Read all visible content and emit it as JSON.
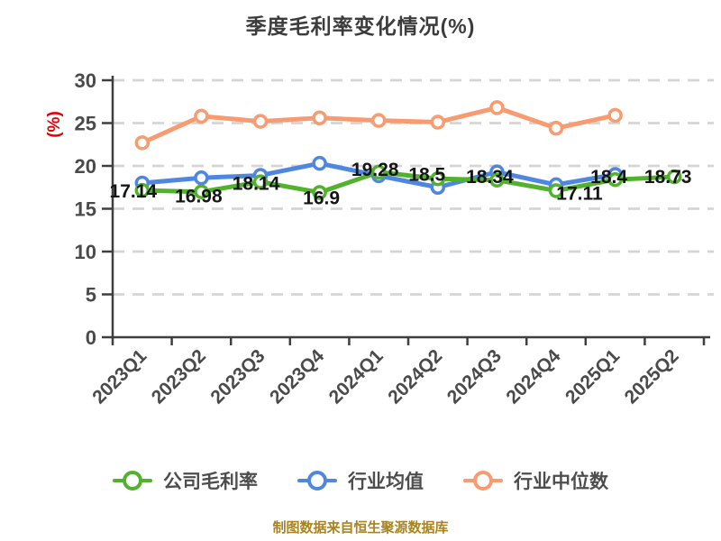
{
  "chart_data": {
    "type": "line",
    "title": "季度毛利率变化情况(%)",
    "categories": [
      "2023Q1",
      "2023Q2",
      "2023Q3",
      "2023Q4",
      "2024Q1",
      "2024Q2",
      "2024Q3",
      "2024Q4",
      "2025Q1",
      "2025Q2"
    ],
    "series": [
      {
        "name": "公司毛利率",
        "color": "#52b22e",
        "values": [
          17.14,
          16.98,
          18.14,
          16.9,
          19.28,
          18.5,
          18.34,
          17.11,
          18.4,
          18.73
        ],
        "data_labels_visible": true
      },
      {
        "name": "行业均值",
        "color": "#4f87e0",
        "values": [
          18.0,
          18.6,
          18.9,
          20.3,
          18.85,
          17.5,
          19.3,
          17.8,
          19.0,
          null
        ],
        "data_labels_visible": false
      },
      {
        "name": "行业中位数",
        "color": "#f89b70",
        "values": [
          22.7,
          25.8,
          25.2,
          25.6,
          25.3,
          25.1,
          26.8,
          24.4,
          25.9,
          null
        ],
        "data_labels_visible": false
      }
    ],
    "xlabel": "",
    "ylabel": "(%)",
    "ylim": [
      0,
      30
    ],
    "yticks": [
      0,
      5,
      10,
      15,
      20,
      25,
      30
    ],
    "grid": "horizontal-dashed",
    "legend_position": "bottom",
    "source_note": "制图数据来自恒生聚源数据库"
  },
  "colors": {
    "title_text": "#3c3c3c",
    "axis_line": "#3f3f3f",
    "tick_label": "#4a4a4a",
    "gridline": "#d5d5d5",
    "data_label": "#151515",
    "y_unit_label": "#e60000",
    "legend_text": "#4d4d4d",
    "footer_text": "#a9831f"
  }
}
